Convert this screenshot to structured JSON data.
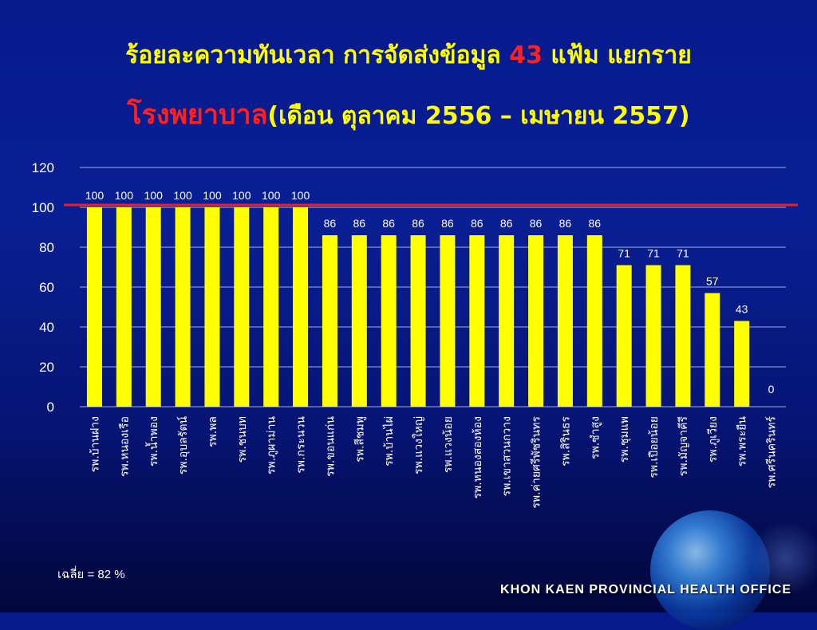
{
  "title": {
    "line1_text": "ร้อยละความทันเวลา การจัดส่งข้อมูล",
    "line1_number": "43",
    "line1_suffix": "แฟ้ม แยกราย",
    "line2_red": "โรงพยาบาล",
    "line2_rest": "(เดือน ตุลาคม 2556 – เมษายน 2557)"
  },
  "average_text": "เฉลี่ย = 82 %",
  "footer": "KHON KAEN PROVINCIAL HEALTH OFFICE",
  "colors": {
    "bar": "#ffff00",
    "target_line": "#e8202a",
    "text": "#ffffff",
    "title": "#ffff00"
  },
  "chart_data": {
    "type": "bar",
    "categories": [
      "รพ.บ้านฝาง",
      "รพ.หนองเรือ",
      "รพ.น้ำพอง",
      "รพ.อุบลรัตน์",
      "รพ.พล",
      "รพ.ชนบท",
      "รพ.ภูผาม่าน",
      "รพ.กระนวน",
      "รพ.ขอนแก่น",
      "รพ.สีชมพู",
      "รพ.บ้านไผ่",
      "รพ.แวงใหญ่",
      "รพ.แวงน้อย",
      "รพ.หนองสองห้อง",
      "รพ.เขาสวนกวาง",
      "รพ.ค่ายศรีพัชรินทร",
      "รพ.สิรินธร",
      "รพ.ซำสูง",
      "รพ.ชุมแพ",
      "รพ.เปือยน้อย",
      "รพ.มัญจาคีรี",
      "รพ.ภูเวียง",
      "รพ.พระยืน",
      "รพ.ศรีนครินทร์"
    ],
    "values": [
      100,
      100,
      100,
      100,
      100,
      100,
      100,
      100,
      86,
      86,
      86,
      86,
      86,
      86,
      86,
      86,
      86,
      86,
      71,
      71,
      71,
      57,
      43,
      0
    ],
    "ylim": [
      0,
      120
    ],
    "yticks": [
      0,
      20,
      40,
      60,
      80,
      100,
      120
    ],
    "grid": true,
    "target_line": 100,
    "data_labels": true
  }
}
